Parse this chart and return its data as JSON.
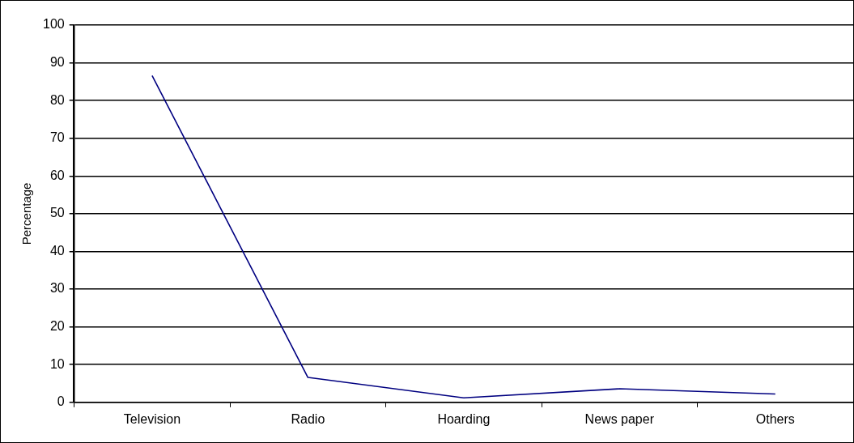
{
  "chart_data": {
    "type": "line",
    "ylabel": "Percentage",
    "categories": [
      "Television",
      "Radio",
      "Hoarding",
      "News paper",
      "Others"
    ],
    "series": [
      {
        "color": "#000080",
        "values": [
          86.6,
          6.6,
          1.2,
          3.6,
          2.2
        ]
      }
    ],
    "ylim": [
      0,
      100
    ],
    "yticks": [
      0,
      10,
      20,
      30,
      40,
      50,
      60,
      70,
      80,
      90,
      100
    ],
    "grid": "y",
    "legend": false,
    "marker": "none",
    "line_style": "solid"
  }
}
